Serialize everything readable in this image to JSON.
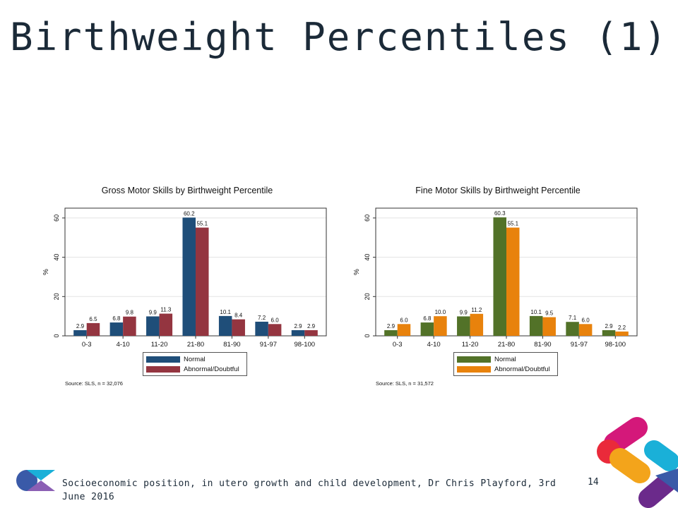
{
  "slide": {
    "title": "Birthweight Percentiles (1)",
    "footer_text": "Socioeconomic position, in utero growth and child development, Dr Chris Playford, 3rd June 2016",
    "page_number": "14"
  },
  "colors": {
    "title_text": "#1b2a38",
    "gross_normal": "#1f4e79",
    "gross_abnormal": "#943540",
    "fine_normal": "#527228",
    "fine_abnormal": "#e8820c",
    "logo_magenta": "#d4187a",
    "logo_orange": "#f3a41b",
    "logo_cyan": "#1ab0d8",
    "logo_purple": "#6b2a8b",
    "logo_blue": "#3a5aa8"
  },
  "chart_data": [
    {
      "id": "gross",
      "type": "bar",
      "title": "Gross Motor Skills by Birthweight Percentile",
      "xlabel": "",
      "ylabel": "%",
      "ylim": [
        0,
        65
      ],
      "yticks": [
        0,
        20,
        40,
        60
      ],
      "grid": true,
      "legend_position": "bottom",
      "categories": [
        "0-3",
        "4-10",
        "11-20",
        "21-80",
        "81-90",
        "91-97",
        "98-100"
      ],
      "series": [
        {
          "name": "Normal",
          "color": "#1f4e79",
          "values": [
            2.9,
            6.8,
            9.9,
            60.2,
            10.1,
            7.2,
            2.9
          ],
          "labels": [
            "2.9",
            "6.8",
            "9.9",
            "60.2",
            "10.1",
            "7.2",
            "2.9"
          ]
        },
        {
          "name": "Abnormal/Doubtful",
          "color": "#943540",
          "values": [
            6.5,
            9.8,
            11.3,
            55.1,
            8.4,
            6.0,
            2.9
          ],
          "labels": [
            "6.5",
            "9.8",
            "11.3",
            "55.1",
            "8.4",
            "6.0",
            "2.9"
          ]
        }
      ],
      "source": "Source: SLS, n = 32,076"
    },
    {
      "id": "fine",
      "type": "bar",
      "title": "Fine Motor Skills by Birthweight Percentile",
      "xlabel": "",
      "ylabel": "%",
      "ylim": [
        0,
        65
      ],
      "yticks": [
        0,
        20,
        40,
        60
      ],
      "grid": true,
      "legend_position": "bottom",
      "categories": [
        "0-3",
        "4-10",
        "11-20",
        "21-80",
        "81-90",
        "91-97",
        "98-100"
      ],
      "series": [
        {
          "name": "Normal",
          "color": "#527228",
          "values": [
            2.9,
            6.8,
            9.9,
            60.3,
            10.1,
            7.1,
            2.9
          ],
          "labels": [
            "2.9",
            "6.8",
            "9.9",
            "60.3",
            "10.1",
            "7.1",
            "2.9"
          ]
        },
        {
          "name": "Abnormal/Doubtful",
          "color": "#e8820c",
          "values": [
            6.0,
            10.0,
            11.2,
            55.1,
            9.5,
            6.0,
            2.2
          ],
          "labels": [
            "6.0",
            "10.0",
            "11.2",
            "55.1",
            "9.5",
            "6.0",
            "2.2"
          ]
        }
      ],
      "source": "Source: SLS, n = 31,572"
    }
  ]
}
